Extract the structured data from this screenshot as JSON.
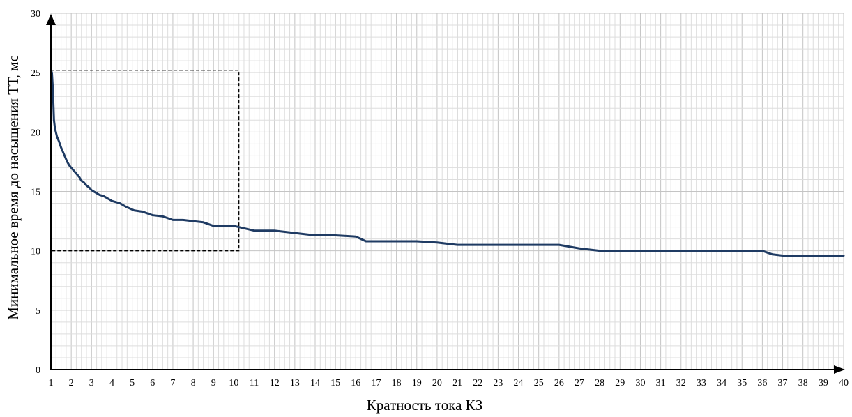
{
  "chart_data": {
    "type": "line",
    "xlabel": "Кратность тока КЗ",
    "ylabel": "Минимальное время до насыщения ТТ, мс",
    "xlim": [
      1,
      40
    ],
    "ylim": [
      0,
      30
    ],
    "x_ticks": [
      "1",
      "2",
      "3",
      "4",
      "5",
      "6",
      "7",
      "8",
      "9",
      "10",
      "11",
      "12",
      "13",
      "14",
      "15",
      "16",
      "17",
      "18",
      "19",
      "20",
      "21",
      "22",
      "23",
      "24",
      "25",
      "26",
      "27",
      "28",
      "29",
      "30",
      "31",
      "32",
      "33",
      "34",
      "35",
      "36",
      "37",
      "38",
      "39",
      "40"
    ],
    "y_ticks": [
      "0",
      "5",
      "10",
      "15",
      "20",
      "25",
      "30"
    ],
    "grid": true,
    "legend": "none",
    "series": [
      {
        "color": "#1f3b63",
        "x": [
          1.0,
          1.05,
          1.1,
          1.15,
          1.2,
          1.3,
          1.4,
          1.5,
          1.6,
          1.7,
          1.8,
          1.9,
          2.0,
          2.1,
          2.2,
          2.3,
          2.4,
          2.5,
          2.6,
          2.75,
          2.9,
          3.0,
          3.2,
          3.4,
          3.6,
          3.8,
          4.0,
          4.2,
          4.4,
          4.7,
          5.1,
          5.5,
          6.0,
          6.5,
          7.0,
          7.5,
          8.0,
          8.5,
          9.0,
          9.5,
          10.0,
          10.5,
          11.0,
          12.0,
          13.0,
          14.0,
          15.0,
          16.0,
          16.5,
          17.0,
          18.0,
          19.0,
          20.0,
          20.5,
          21.0,
          22.0,
          23.0,
          24.0,
          25.0,
          26.0,
          27.0,
          28.0,
          29.0,
          30.0,
          31.0,
          32.0,
          33.0,
          34.0,
          35.0,
          36.0,
          36.5,
          37.0,
          38.0,
          39.0,
          40.0
        ],
        "y": [
          25.2,
          25.0,
          23.5,
          21.0,
          20.3,
          19.6,
          19.2,
          18.7,
          18.3,
          17.9,
          17.5,
          17.2,
          17.0,
          16.8,
          16.6,
          16.4,
          16.2,
          15.9,
          15.8,
          15.5,
          15.3,
          15.1,
          14.9,
          14.7,
          14.6,
          14.4,
          14.2,
          14.1,
          14.0,
          13.7,
          13.4,
          13.3,
          13.0,
          12.9,
          12.6,
          12.6,
          12.5,
          12.4,
          12.1,
          12.1,
          12.1,
          11.9,
          11.7,
          11.7,
          11.5,
          11.3,
          11.3,
          11.2,
          10.8,
          10.8,
          10.8,
          10.8,
          10.7,
          10.6,
          10.5,
          10.5,
          10.5,
          10.5,
          10.5,
          10.5,
          10.2,
          10.0,
          10.0,
          10.0,
          10.0,
          10.0,
          10.0,
          10.0,
          10.0,
          10.0,
          9.7,
          9.6,
          9.6,
          9.6,
          9.6
        ]
      }
    ],
    "annotations": [
      {
        "type": "dashed-rectangle",
        "x_range": [
          1.0,
          10.25
        ],
        "y_range": [
          10.0,
          25.2
        ]
      }
    ]
  }
}
